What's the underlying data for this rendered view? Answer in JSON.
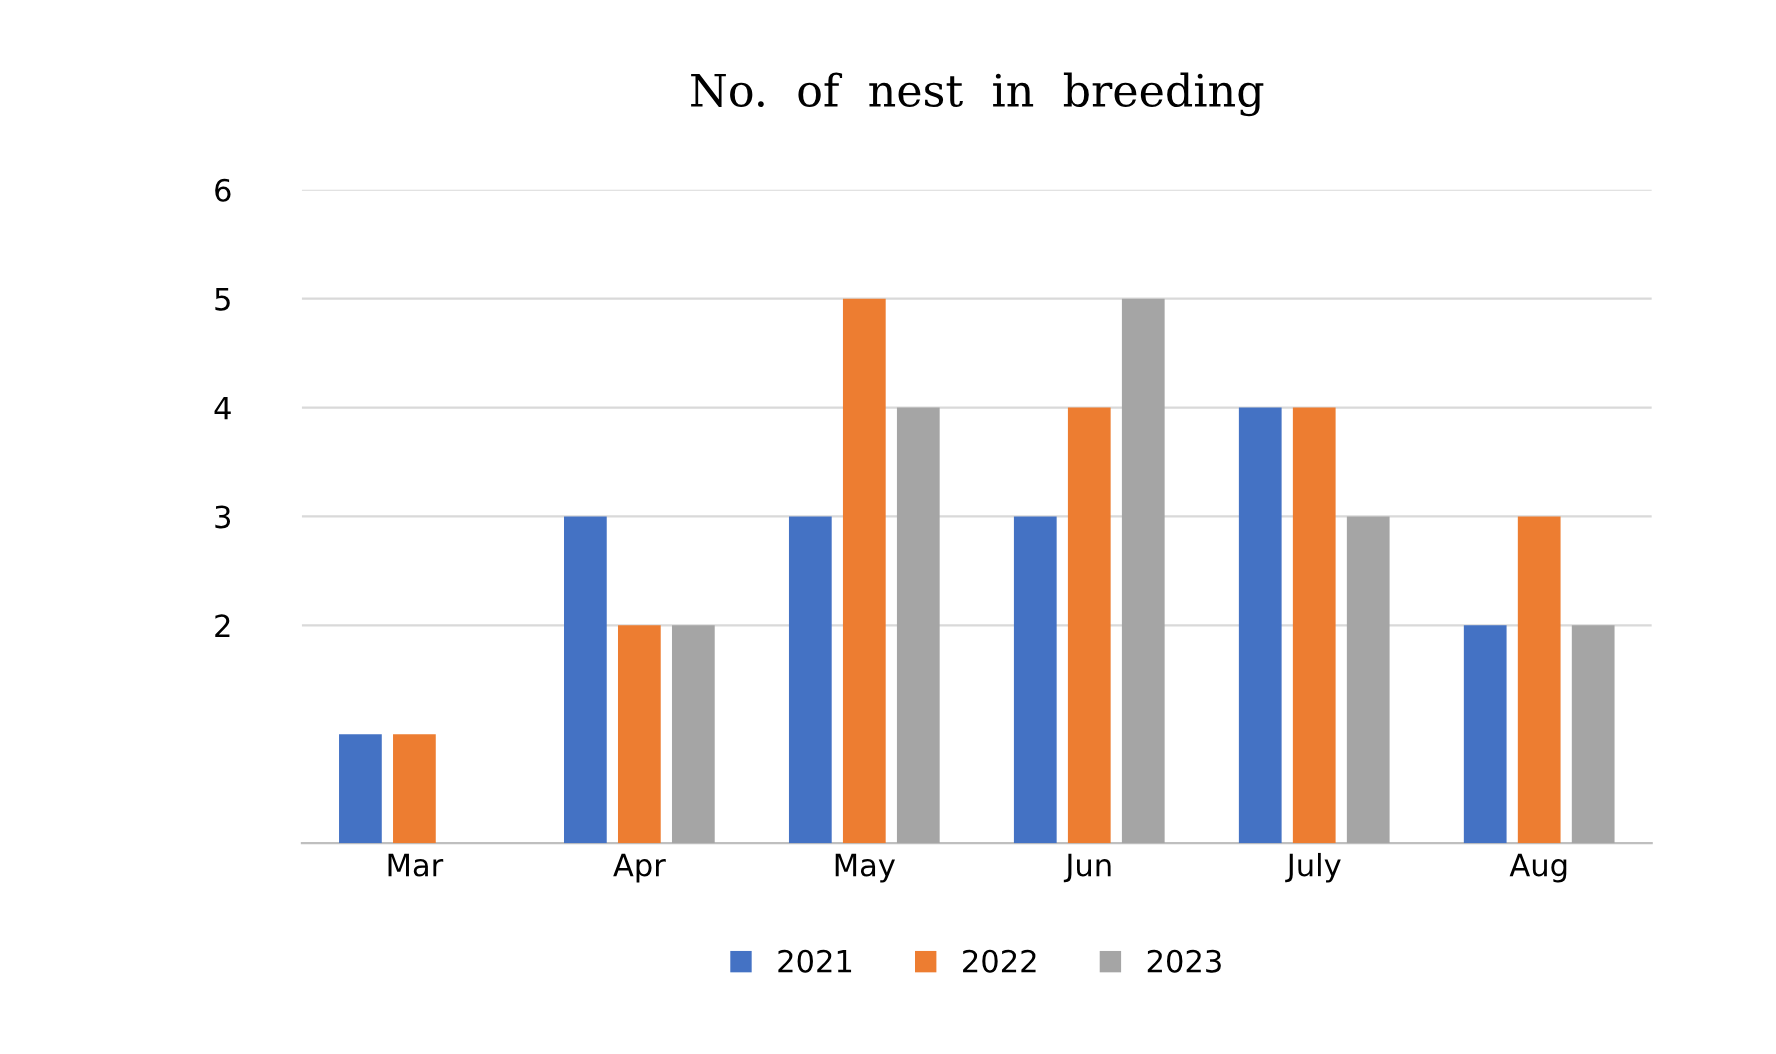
{
  "chart_data": {
    "type": "bar",
    "title": "No.  of  nest  in  breeding",
    "categories": [
      "Mar",
      "Apr",
      "May",
      "Jun",
      "July",
      "Aug"
    ],
    "series": [
      {
        "name": "2021",
        "color": "#4472c4",
        "values": [
          1,
          3,
          3,
          3,
          4,
          2
        ]
      },
      {
        "name": "2022",
        "color": "#ed7d31",
        "values": [
          1,
          2,
          5,
          4,
          4,
          3
        ]
      },
      {
        "name": "2023",
        "color": "#a5a5a5",
        "values": [
          null,
          2,
          4,
          5,
          3,
          2
        ]
      }
    ],
    "ylim": [
      0,
      6
    ],
    "yticks": [
      2,
      3,
      4,
      5,
      6
    ],
    "grid": "y",
    "legend": "bottom"
  }
}
